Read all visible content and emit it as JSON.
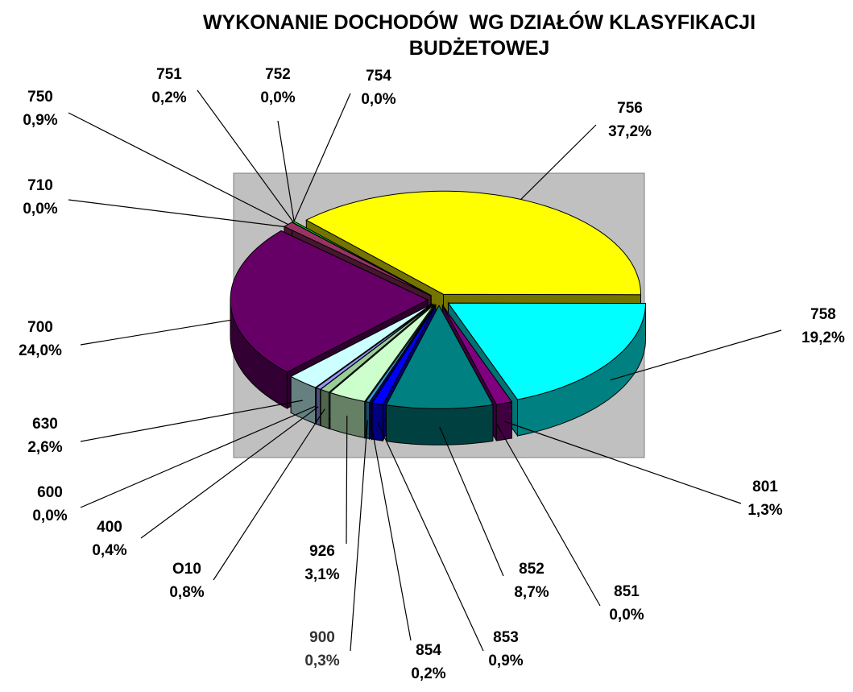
{
  "chart_data": {
    "type": "pie",
    "title": "WYKONANIE DOCHODÓW  WG DZIAŁÓW KLASYFIKACJI BUDŻETOWEJ",
    "categories": [
      "756",
      "758",
      "801",
      "851",
      "852",
      "853",
      "854",
      "900",
      "926",
      "O10",
      "400",
      "600",
      "630",
      "700",
      "710",
      "750",
      "751",
      "752",
      "754"
    ],
    "values": [
      37.2,
      19.2,
      1.3,
      0.0,
      8.7,
      0.9,
      0.2,
      0.3,
      3.1,
      0.8,
      0.4,
      0.0,
      2.6,
      24.0,
      0.0,
      0.9,
      0.2,
      0.0,
      0.0
    ],
    "value_labels": [
      "37,2%",
      "19,2%",
      "1,3%",
      "0,0%",
      "8,7%",
      "0,9%",
      "0,2%",
      "0,3%",
      "3,1%",
      "0,8%",
      "0,4%",
      "0,0%",
      "2,6%",
      "24,0%",
      "0,0%",
      "0,9%",
      "0,2%",
      "0,0%",
      "0,0%"
    ],
    "colors": [
      "#ffff00",
      "#00ffff",
      "#800080",
      "#808080",
      "#008080",
      "#0000ff",
      "#000080",
      "#3399cc",
      "#ccffcc",
      "#99cc99",
      "#9999ff",
      "#993366",
      "#ccffff",
      "#660066",
      "#ff8080",
      "#993366",
      "#00ff00",
      "#33cccc",
      "#808000"
    ]
  }
}
